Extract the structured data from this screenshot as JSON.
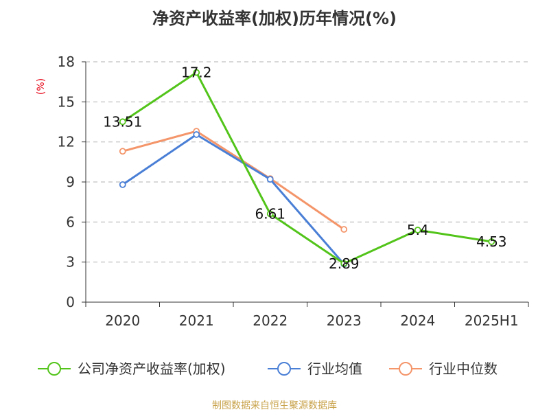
{
  "chart_data": {
    "type": "line",
    "title": "净资产收益率(加权)历年情况(%)",
    "unit_label": "(%)",
    "categories": [
      "2020",
      "2021",
      "2022",
      "2023",
      "2024",
      "2025H1"
    ],
    "ylim": [
      0,
      18
    ],
    "yticks": [
      0,
      3,
      6,
      9,
      12,
      15,
      18
    ],
    "grid": true,
    "legend_position": "bottom",
    "series": [
      {
        "name": "公司净资产收益率(加权)",
        "color": "#52c41a",
        "values": [
          13.51,
          17.2,
          6.61,
          2.89,
          5.4,
          4.53
        ],
        "labels": [
          "13.51",
          "17.2",
          "6.61",
          "2.89",
          "5.4",
          "4.53"
        ]
      },
      {
        "name": "行业均值",
        "color": "#4a7fd6",
        "values": [
          8.8,
          12.55,
          9.2,
          2.85,
          null,
          null
        ],
        "labels": []
      },
      {
        "name": "行业中位数",
        "color": "#f4956a",
        "values": [
          11.3,
          12.8,
          9.25,
          5.45,
          null,
          null
        ],
        "labels": []
      }
    ],
    "source": "制图数据来自恒生聚源数据库"
  }
}
